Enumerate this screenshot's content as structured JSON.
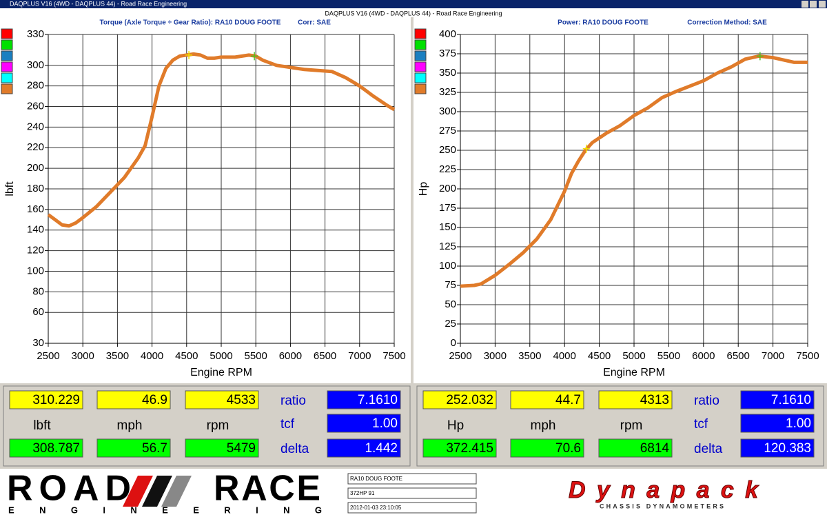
{
  "window": {
    "title": "DAQPLUS V16 (4WD - DAQPLUS 44) - Road Race Engineering",
    "caption": "DAQPLUS V16 (4WD - DAQPLUS 44) - Road Race Engineering"
  },
  "chart_data": [
    {
      "type": "line",
      "title": "Torque (Axle Torque ÷ Gear Ratio): RA10 DOUG FOOTE",
      "subtitle": "Corr: SAE",
      "x_label": "Engine RPM",
      "y_label": "lbft",
      "color": "#e07b2a",
      "x": [
        2500,
        2600,
        2700,
        2800,
        2900,
        3000,
        3200,
        3400,
        3600,
        3800,
        3900,
        4000,
        4100,
        4200,
        4300,
        4400,
        4500,
        4600,
        4700,
        4800,
        4900,
        5000,
        5200,
        5400,
        5500,
        5600,
        5800,
        6000,
        6200,
        6400,
        6600,
        6800,
        7000,
        7200,
        7400,
        7500
      ],
      "values": [
        155,
        150,
        145,
        144,
        147,
        152,
        163,
        177,
        191,
        210,
        222,
        250,
        280,
        297,
        305,
        309,
        310,
        311,
        310,
        307,
        307,
        308,
        308,
        310,
        309,
        305,
        300,
        298,
        296,
        295,
        294,
        288,
        280,
        270,
        261,
        257
      ],
      "xlim": [
        2500,
        7500
      ],
      "xticks": [
        2500,
        3000,
        3500,
        4000,
        4500,
        5000,
        5500,
        6000,
        6500,
        7000,
        7500
      ],
      "ylim": [
        30,
        330
      ],
      "yticks": [
        30,
        60,
        80,
        100,
        120,
        140,
        160,
        180,
        200,
        220,
        240,
        260,
        280,
        300,
        330
      ],
      "grid": true,
      "cursors": [
        {
          "x": 4533,
          "y": 310,
          "color": "#f0e000"
        },
        {
          "x": 5479,
          "y": 309,
          "color": "#50c020"
        }
      ]
    },
    {
      "type": "line",
      "title": "Power: RA10 DOUG FOOTE",
      "subtitle": "Correction Method: SAE",
      "x_label": "Engine RPM",
      "y_label": "Hp",
      "color": "#e07b2a",
      "x": [
        2500,
        2700,
        2800,
        3000,
        3200,
        3400,
        3600,
        3800,
        4000,
        4100,
        4200,
        4300,
        4400,
        4600,
        4800,
        5000,
        5200,
        5400,
        5600,
        5800,
        6000,
        6200,
        6400,
        6600,
        6800,
        7000,
        7200,
        7300,
        7500
      ],
      "values": [
        74,
        75,
        77,
        88,
        102,
        117,
        135,
        160,
        197,
        220,
        236,
        250,
        260,
        272,
        282,
        295,
        305,
        318,
        326,
        333,
        340,
        350,
        358,
        368,
        372,
        370,
        366,
        364,
        364
      ],
      "xlim": [
        2500,
        7500
      ],
      "xticks": [
        2500,
        3000,
        3500,
        4000,
        4500,
        5000,
        5500,
        6000,
        6500,
        7000,
        7500
      ],
      "ylim": [
        0,
        400
      ],
      "yticks": [
        0,
        25,
        50,
        75,
        100,
        125,
        150,
        175,
        200,
        225,
        250,
        275,
        300,
        325,
        350,
        375,
        400
      ],
      "grid": true,
      "cursors": [
        {
          "x": 4313,
          "y": 252,
          "color": "#f0e000"
        },
        {
          "x": 6814,
          "y": 372,
          "color": "#50c020"
        }
      ]
    }
  ],
  "readouts": [
    {
      "top": [
        "310.229",
        "46.9",
        "4533"
      ],
      "units": [
        "lbft",
        "mph",
        "rpm"
      ],
      "bottom": [
        "308.787",
        "56.7",
        "5479"
      ],
      "param_names": [
        "ratio",
        "tcf",
        "delta"
      ],
      "param_values": [
        "7.1610",
        "1.00",
        "1.442"
      ]
    },
    {
      "top": [
        "252.032",
        "44.7",
        "4313"
      ],
      "units": [
        "Hp",
        "mph",
        "rpm"
      ],
      "bottom": [
        "372.415",
        "70.6",
        "6814"
      ],
      "param_names": [
        "ratio",
        "tcf",
        "delta"
      ],
      "param_values": [
        "7.1610",
        "1.00",
        "120.383"
      ]
    }
  ],
  "footer": {
    "logo_top_left": "ROAD",
    "logo_top_right": "RACE",
    "logo_bottom": "E N G I N E E R I N G",
    "info": [
      "RA10 DOUG FOOTE",
      "372HP 91",
      "2012-01-03 23:10:05"
    ],
    "brand": "Dynapack",
    "brand_sub": "CHASSIS DYNAMOMETERS"
  }
}
